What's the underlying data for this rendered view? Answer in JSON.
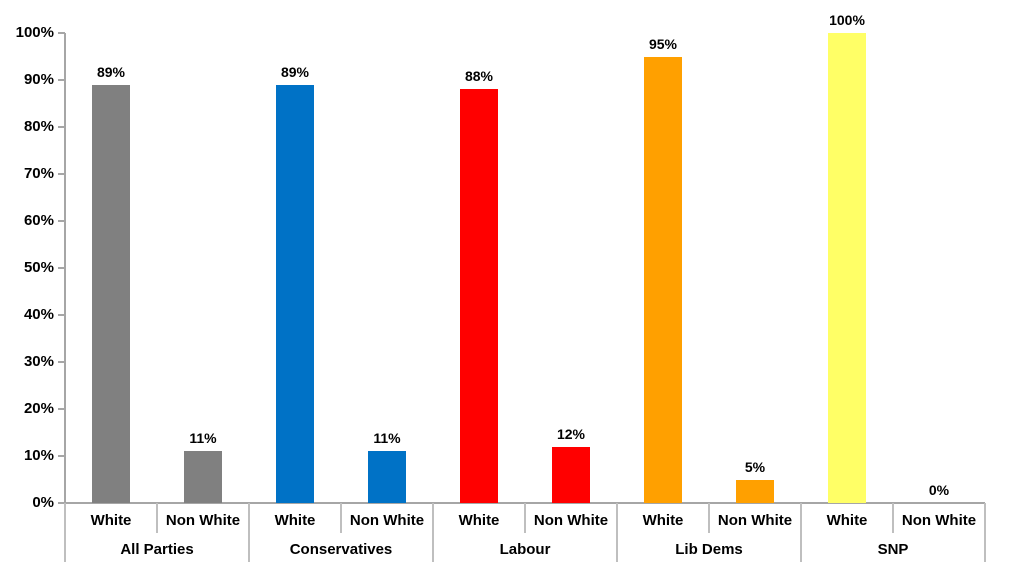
{
  "chart_data": {
    "type": "bar",
    "title": "",
    "xlabel": "",
    "ylabel": "",
    "ylim": [
      0,
      100
    ],
    "ytick_step": 10,
    "yticks": [
      "0%",
      "10%",
      "20%",
      "30%",
      "40%",
      "50%",
      "60%",
      "70%",
      "80%",
      "90%",
      "100%"
    ],
    "grid": false,
    "legend_position": "none",
    "categories": [
      "White",
      "Non White"
    ],
    "groups": [
      {
        "label": "All Parties",
        "color": "#808080",
        "bars": [
          {
            "category": "White",
            "value": 89,
            "label": "89%"
          },
          {
            "category": "Non White",
            "value": 11,
            "label": "11%"
          }
        ]
      },
      {
        "label": "Conservatives",
        "color": "#0072C6",
        "bars": [
          {
            "category": "White",
            "value": 89,
            "label": "89%"
          },
          {
            "category": "Non White",
            "value": 11,
            "label": "11%"
          }
        ]
      },
      {
        "label": "Labour",
        "color": "#FF0000",
        "bars": [
          {
            "category": "White",
            "value": 88,
            "label": "88%"
          },
          {
            "category": "Non White",
            "value": 12,
            "label": "12%"
          }
        ]
      },
      {
        "label": "Lib Dems",
        "color": "#FFA000",
        "bars": [
          {
            "category": "White",
            "value": 95,
            "label": "95%"
          },
          {
            "category": "Non White",
            "value": 5,
            "label": "5%"
          }
        ]
      },
      {
        "label": "SNP",
        "color": "#FFFF66",
        "bars": [
          {
            "category": "White",
            "value": 100,
            "label": "100%"
          },
          {
            "category": "Non White",
            "value": 0,
            "label": "0%"
          }
        ]
      }
    ],
    "colors": {
      "axis": "#A6A6A6",
      "divider": "#BFBFBF",
      "text": "#000000",
      "background": "#FFFFFF"
    }
  }
}
